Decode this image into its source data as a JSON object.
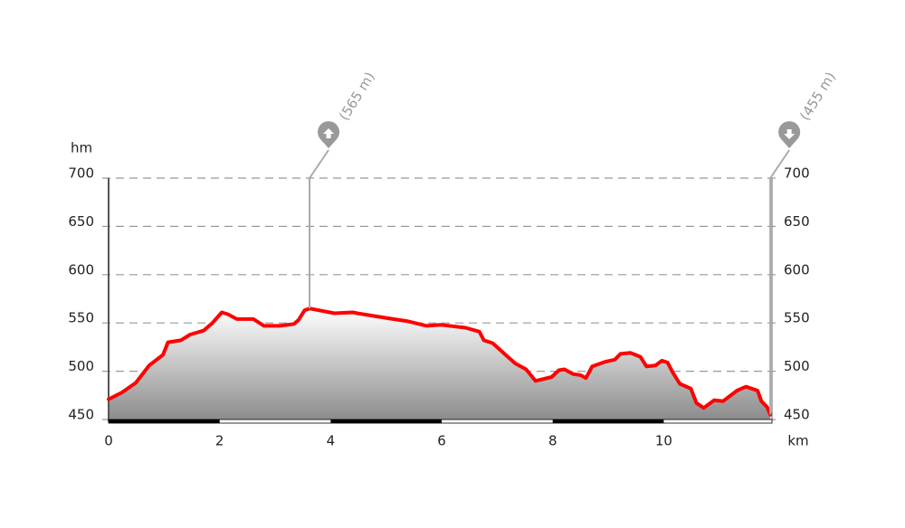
{
  "chart_data": {
    "type": "area-line",
    "y_unit": "hm",
    "x_unit": "km",
    "x": [
      0,
      0.24,
      0.49,
      0.73,
      0.98,
      1.07,
      1.3,
      1.47,
      1.71,
      1.87,
      2.04,
      2.15,
      2.31,
      2.61,
      2.8,
      3.09,
      3.34,
      3.42,
      3.53,
      3.62,
      4.07,
      4.4,
      4.48,
      5.02,
      5.37,
      5.73,
      5.99,
      6.43,
      6.68,
      6.76,
      6.92,
      7.17,
      7.33,
      7.52,
      7.69,
      7.98,
      8.11,
      8.21,
      8.37,
      8.5,
      8.6,
      8.71,
      8.96,
      9.12,
      9.22,
      9.4,
      9.58,
      9.69,
      9.85,
      9.97,
      10.07,
      10.16,
      10.29,
      10.49,
      10.59,
      10.72,
      10.91,
      11.07,
      11.32,
      11.48,
      11.69,
      11.76,
      11.86,
      11.92
    ],
    "series": [
      {
        "color": "#ff0000",
        "values": [
          471,
          478,
          488,
          506,
          517,
          530,
          532,
          538,
          542,
          550,
          561,
          559,
          554,
          554,
          547,
          547,
          549,
          553,
          563,
          565,
          560,
          561,
          560,
          555,
          552,
          547,
          548,
          545,
          541,
          532,
          529,
          516,
          508,
          502,
          490,
          494,
          501,
          502,
          497,
          496,
          493,
          505,
          510,
          512,
          518,
          519,
          515,
          505,
          506,
          511,
          509,
          499,
          487,
          482,
          467,
          462,
          470,
          469,
          480,
          484,
          480,
          469,
          463,
          455
        ]
      }
    ],
    "annotations": [
      {
        "label": "(565 m)",
        "x": 3.62,
        "y": 565,
        "icon": "up"
      },
      {
        "label": "(455 m)",
        "x": 11.92,
        "y": 455,
        "icon": "down"
      }
    ],
    "xlim": [
      0,
      11.95
    ],
    "xticks": [
      0,
      2,
      4,
      6,
      8,
      10
    ],
    "ylim": [
      450,
      700
    ],
    "yticks": [
      450,
      500,
      550,
      600,
      650,
      700
    ],
    "grid": true
  }
}
